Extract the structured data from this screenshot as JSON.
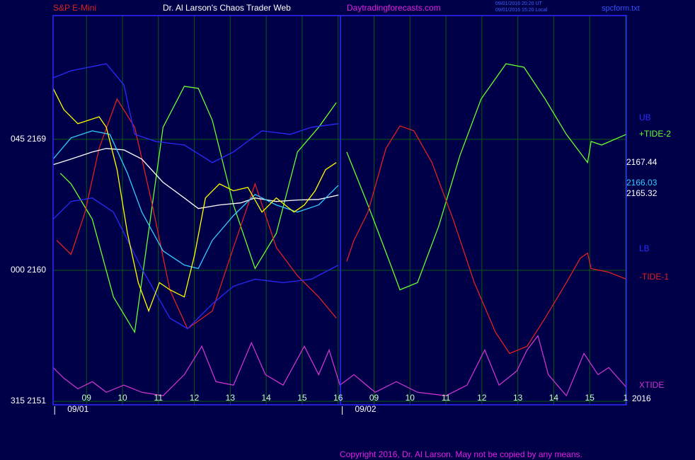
{
  "header": {
    "left": "S&P E-Mini",
    "center": "Dr. Al Larson's Chaos Trader Web",
    "site": "Daytradingforecasts.com",
    "stamp1": "09/01/2016 20:20 UT",
    "stamp2": "09/01/2016 15:20 Local",
    "file": "spcform.txt"
  },
  "footer": "Copyright 2016, Dr. Al Larson. May not be copied by any means.",
  "chart_data": {
    "type": "line",
    "grid": true,
    "xlim": [
      -0.93,
      15.02
    ],
    "ylim": [
      2150.76,
      2177.5
    ],
    "xticks": [
      {
        "value": 0,
        "label": "09"
      },
      {
        "value": 1,
        "label": "10"
      },
      {
        "value": 2,
        "label": "11"
      },
      {
        "value": 3,
        "label": "12"
      },
      {
        "value": 4,
        "label": "13"
      },
      {
        "value": 5,
        "label": "14"
      },
      {
        "value": 6,
        "label": "15"
      },
      {
        "value": 7,
        "label": "16"
      },
      {
        "value": 8,
        "label": "09"
      },
      {
        "value": 9,
        "label": "10"
      },
      {
        "value": 10,
        "label": "11"
      },
      {
        "value": 11,
        "label": "12"
      },
      {
        "value": 12,
        "label": "13"
      },
      {
        "value": 13,
        "label": "14"
      },
      {
        "value": 14,
        "label": "15"
      },
      {
        "value": 15,
        "label": "1"
      }
    ],
    "yticks": [
      {
        "value": 2169,
        "label": "045  2169"
      },
      {
        "value": 2160,
        "label": "000  2160"
      },
      {
        "value": 2151,
        "label": "315  2151"
      }
    ],
    "date_labels": [
      "09/01",
      "09/02"
    ],
    "series": [
      {
        "name": "+TIDE-2",
        "color": "#66ff33",
        "x": [
          -0.73,
          -0.43,
          0.16,
          0.75,
          1.34,
          2.13,
          2.72,
          3.11,
          3.5,
          4.09,
          4.69,
          5.28,
          5.87,
          6.46,
          6.95,
          7.1,
          7.24,
          7.83,
          8.43,
          8.72,
          9.21,
          9.8,
          10.39,
          10.98,
          11.67,
          12.17,
          12.76,
          13.35,
          13.94,
          14.04,
          14.33,
          15.02
        ],
        "values": [
          2166.67,
          2165.94,
          2163.51,
          2158.17,
          2155.75,
          2169.83,
          2172.64,
          2172.5,
          2170.31,
          2164.49,
          2160.12,
          2162.54,
          2168.13,
          2169.83,
          2171.52,
          null,
          2168.13,
          2164.49,
          2160.6,
          2158.66,
          2159.15,
          2163.03,
          2167.89,
          2171.77,
          2174.19,
          2173.95,
          2171.77,
          2169.34,
          2167.4,
          2168.85,
          2168.61,
          2169.34
        ]
      },
      {
        "name": "-TIDE-1",
        "color": "#e02020",
        "x": [
          -0.83,
          -0.43,
          -0.04,
          0.35,
          0.85,
          1.34,
          1.83,
          2.32,
          2.81,
          3.5,
          4.09,
          4.69,
          5.28,
          5.87,
          6.46,
          6.95,
          7.1,
          7.24,
          7.44,
          7.83,
          8.33,
          8.72,
          9.11,
          9.61,
          10.2,
          10.79,
          11.38,
          11.77,
          12.26,
          12.76,
          13.35,
          13.74,
          13.94,
          14.04,
          14.53,
          15.02
        ],
        "values": [
          2162.06,
          2161.09,
          2164.0,
          2168.37,
          2171.77,
          2169.83,
          2164.49,
          2158.66,
          2155.99,
          2157.2,
          2161.57,
          2165.94,
          2161.57,
          2159.63,
          2158.17,
          2156.72,
          null,
          2160.6,
          2162.06,
          2164.0,
          2168.37,
          2169.92,
          2169.58,
          2167.4,
          2163.51,
          2159.15,
          2155.75,
          2154.29,
          2154.78,
          2156.72,
          2159.15,
          2160.84,
          2161.18,
          2160.12,
          2159.87,
          2159.39
        ]
      },
      {
        "name": "XTIDE",
        "color": "#cc33cc",
        "x": [
          -0.93,
          -0.63,
          -0.24,
          0.16,
          0.55,
          1.04,
          1.54,
          2.13,
          2.72,
          3.21,
          3.6,
          4.09,
          4.59,
          4.98,
          5.47,
          6.06,
          6.46,
          6.75,
          7.05,
          7.44,
          8.03,
          8.62,
          9.21,
          10.0,
          10.59,
          11.08,
          11.48,
          11.97,
          12.26,
          12.56,
          12.85,
          13.35,
          13.84,
          14.23,
          14.53,
          15.02
        ],
        "values": [
          2153.32,
          2152.59,
          2151.86,
          2152.35,
          2151.62,
          2152.11,
          2151.62,
          2151.38,
          2152.83,
          2154.78,
          2152.35,
          2152.11,
          2155.02,
          2152.83,
          2152.11,
          2154.78,
          2152.83,
          2154.53,
          2152.11,
          2152.83,
          2151.62,
          2152.35,
          2151.62,
          2151.38,
          2152.11,
          2154.53,
          2152.11,
          2153.08,
          2154.53,
          2155.5,
          2152.83,
          2151.38,
          2154.29,
          2152.83,
          2153.32,
          2151.96
        ]
      },
      {
        "name": "UB",
        "color": "#2a2aff",
        "x": [
          -0.93,
          -0.43,
          0.55,
          1.04,
          1.34,
          1.93,
          2.72,
          3.5,
          4.09,
          4.88,
          5.67,
          6.26,
          7.01
        ],
        "values": [
          2173.22,
          2173.71,
          2174.19,
          2172.74,
          2169.34,
          2168.85,
          2168.61,
          2167.4,
          2168.13,
          2169.58,
          2169.34,
          2169.83,
          2170.07
        ]
      },
      {
        "name": "LB",
        "color": "#2a2aff",
        "x": [
          -0.93,
          -0.43,
          0.16,
          0.75,
          1.54,
          2.32,
          2.81,
          3.5,
          4.09,
          4.69,
          5.47,
          6.26,
          7.01
        ],
        "values": [
          2163.51,
          2164.73,
          2164.97,
          2164.0,
          2160.12,
          2156.72,
          2155.99,
          2157.69,
          2158.91,
          2159.39,
          2159.15,
          2159.39,
          2160.36
        ]
      },
      {
        "color": "#ffffff",
        "x": [
          -0.93,
          -0.43,
          0.16,
          0.55,
          1.04,
          1.54,
          2.13,
          2.72,
          3.11,
          3.7,
          4.29,
          4.69,
          5.28,
          5.87,
          6.46,
          7.01
        ],
        "values": [
          2167.25,
          2167.64,
          2168.13,
          2168.37,
          2168.27,
          2167.64,
          2166.04,
          2164.97,
          2164.24,
          2164.49,
          2164.63,
          2164.97,
          2164.73,
          2164.83,
          2164.87,
          2165.17
        ]
      },
      {
        "color": "#33ccff",
        "x": [
          -0.93,
          -0.43,
          0.16,
          0.65,
          1.14,
          1.54,
          2.13,
          2.72,
          3.11,
          3.5,
          4.09,
          4.69,
          5.28,
          5.87,
          6.46,
          7.01
        ],
        "values": [
          2167.64,
          2169.1,
          2169.58,
          2169.34,
          2166.67,
          2164.0,
          2161.33,
          2160.36,
          2160.12,
          2162.06,
          2163.76,
          2165.21,
          2164.49,
          2164.0,
          2164.49,
          2165.84
        ]
      },
      {
        "color": "#ffff00",
        "x": [
          -0.93,
          -0.63,
          -0.24,
          0.35,
          0.55,
          0.85,
          1.14,
          1.44,
          1.73,
          2.03,
          2.32,
          2.72,
          3.01,
          3.31,
          3.7,
          4.09,
          4.49,
          4.88,
          5.28,
          5.77,
          6.06,
          6.36,
          6.65,
          6.95
        ],
        "values": [
          2172.5,
          2171.04,
          2170.07,
          2170.55,
          2169.83,
          2166.91,
          2162.54,
          2159.15,
          2157.2,
          2159.15,
          2158.66,
          2158.17,
          2161.09,
          2164.97,
          2165.94,
          2165.46,
          2165.7,
          2164.0,
          2164.97,
          2164.0,
          2164.49,
          2165.46,
          2166.91,
          2167.4
        ]
      }
    ],
    "annotations": [
      {
        "text": "UB",
        "color": "#2a2aff"
      },
      {
        "text": "+TIDE-2",
        "color": "#66ff33"
      },
      {
        "text": "2167.44",
        "color": "#ffffff"
      },
      {
        "text": "2166.03",
        "color": "#33ccff"
      },
      {
        "text": "2165.32",
        "color": "#ffffff"
      },
      {
        "text": "LB",
        "color": "#2a2aff"
      },
      {
        "text": "-TIDE-1",
        "color": "#e02020"
      },
      {
        "text": "XTIDE",
        "color": "#cc33cc"
      },
      {
        "text": "2016",
        "color": "#ffffff"
      }
    ]
  }
}
